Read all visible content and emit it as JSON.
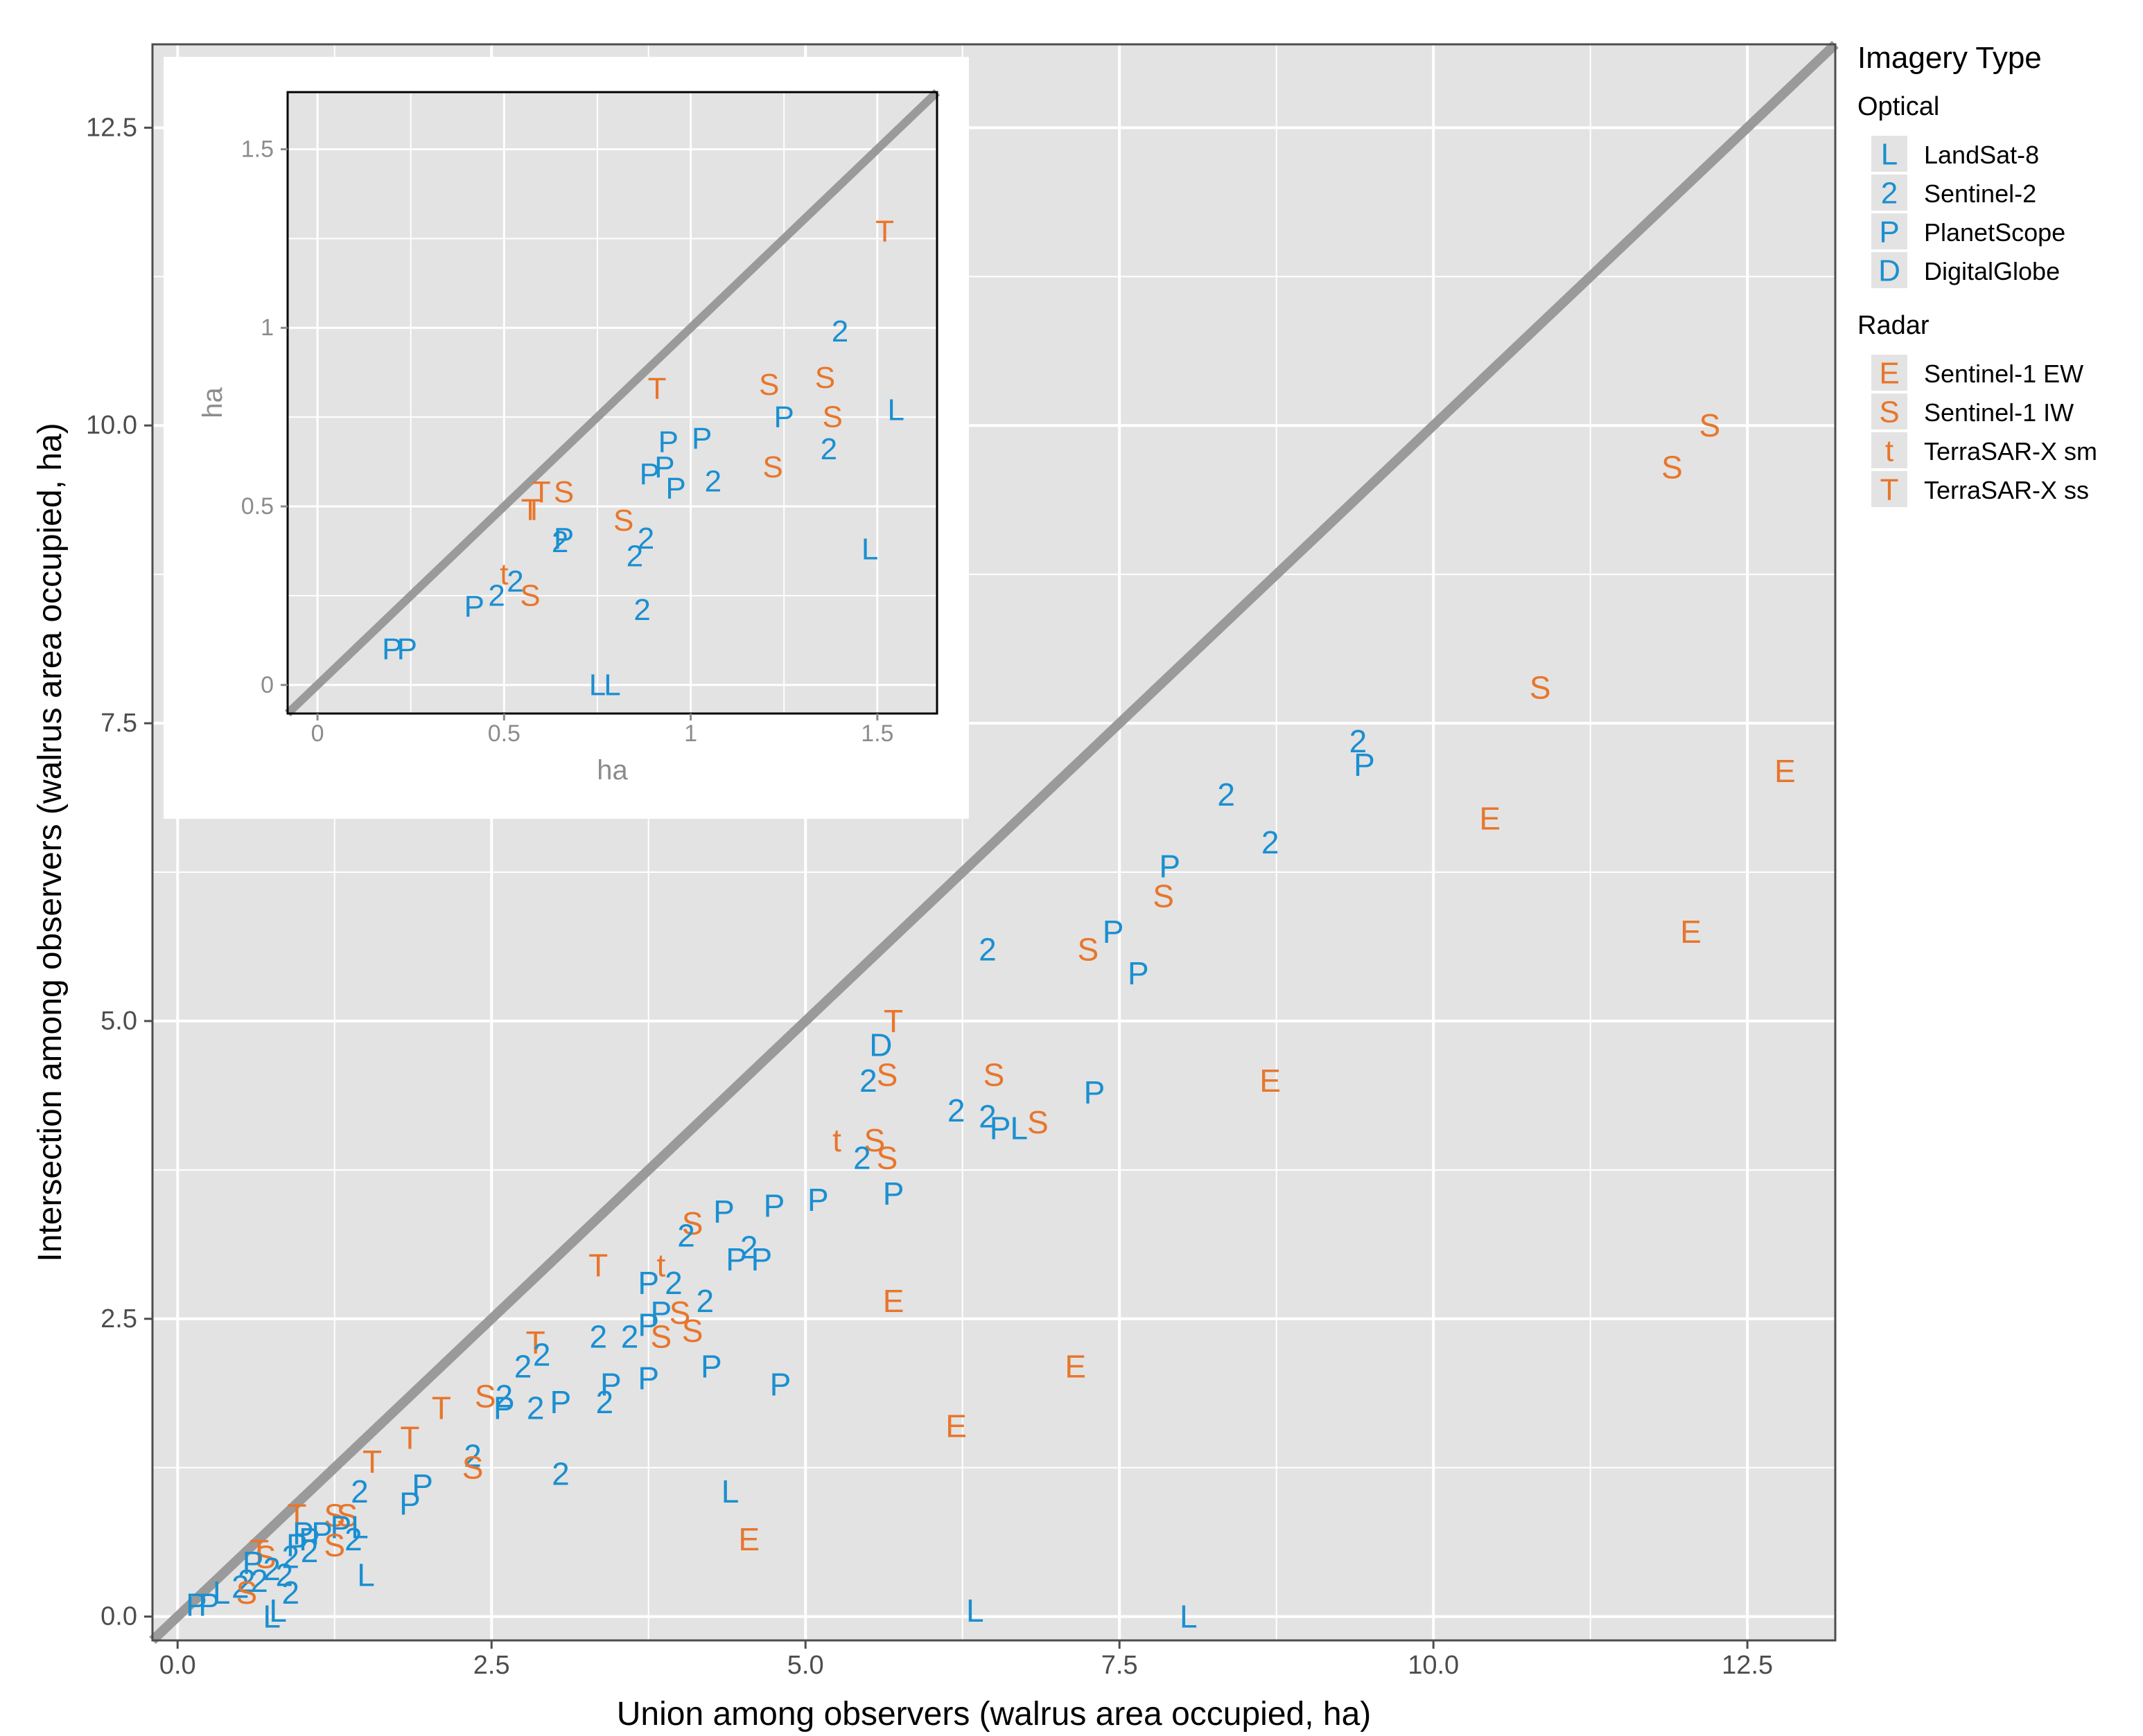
{
  "chart_data": [
    {
      "type": "scatter",
      "name": "main",
      "xlabel": "Union among observers (walrus area occupied, ha)",
      "ylabel": "Intersection among observers (walrus area occupied, ha)",
      "xlim": [
        -0.2,
        13.2
      ],
      "ylim": [
        -0.2,
        13.2
      ],
      "xticks": [
        0.0,
        2.5,
        5.0,
        7.5,
        10.0,
        12.5
      ],
      "yticks": [
        0.0,
        2.5,
        5.0,
        7.5,
        10.0,
        12.5
      ],
      "xtick_labels": [
        "0.0",
        "2.5",
        "5.0",
        "7.5",
        "10.0",
        "12.5"
      ],
      "ytick_labels": [
        "0.0",
        "2.5",
        "5.0",
        "7.5",
        "10.0",
        "12.5"
      ],
      "identity_line": true,
      "points": [
        {
          "x": 12.2,
          "y": 10.0,
          "label": "S"
        },
        {
          "x": 11.9,
          "y": 9.65,
          "label": "S"
        },
        {
          "x": 10.85,
          "y": 7.8,
          "label": "S"
        },
        {
          "x": 12.8,
          "y": 7.1,
          "label": "E"
        },
        {
          "x": 10.45,
          "y": 6.7,
          "label": "E"
        },
        {
          "x": 12.05,
          "y": 5.75,
          "label": "E"
        },
        {
          "x": 9.4,
          "y": 7.35,
          "label": "2"
        },
        {
          "x": 9.45,
          "y": 7.15,
          "label": "P"
        },
        {
          "x": 8.35,
          "y": 6.9,
          "label": "2"
        },
        {
          "x": 8.7,
          "y": 6.5,
          "label": "2"
        },
        {
          "x": 7.9,
          "y": 6.3,
          "label": "P"
        },
        {
          "x": 7.85,
          "y": 6.05,
          "label": "S"
        },
        {
          "x": 7.45,
          "y": 5.75,
          "label": "P"
        },
        {
          "x": 7.25,
          "y": 5.6,
          "label": "S"
        },
        {
          "x": 7.65,
          "y": 5.4,
          "label": "P"
        },
        {
          "x": 6.45,
          "y": 5.6,
          "label": "2"
        },
        {
          "x": 5.7,
          "y": 5.0,
          "label": "T"
        },
        {
          "x": 5.6,
          "y": 4.8,
          "label": "D"
        },
        {
          "x": 5.65,
          "y": 4.55,
          "label": "S"
        },
        {
          "x": 5.5,
          "y": 4.5,
          "label": "2"
        },
        {
          "x": 6.5,
          "y": 4.55,
          "label": "S"
        },
        {
          "x": 8.7,
          "y": 4.5,
          "label": "E"
        },
        {
          "x": 7.3,
          "y": 4.4,
          "label": "P"
        },
        {
          "x": 6.2,
          "y": 4.25,
          "label": "2"
        },
        {
          "x": 6.45,
          "y": 4.2,
          "label": "2"
        },
        {
          "x": 6.55,
          "y": 4.1,
          "label": "P"
        },
        {
          "x": 6.7,
          "y": 4.1,
          "label": "L"
        },
        {
          "x": 6.85,
          "y": 4.15,
          "label": "S"
        },
        {
          "x": 5.25,
          "y": 4.0,
          "label": "t"
        },
        {
          "x": 5.55,
          "y": 4.0,
          "label": "S"
        },
        {
          "x": 5.45,
          "y": 3.85,
          "label": "2"
        },
        {
          "x": 5.65,
          "y": 3.85,
          "label": "S"
        },
        {
          "x": 5.7,
          "y": 3.55,
          "label": "P"
        },
        {
          "x": 5.1,
          "y": 3.5,
          "label": "P"
        },
        {
          "x": 4.75,
          "y": 3.45,
          "label": "P"
        },
        {
          "x": 4.35,
          "y": 3.4,
          "label": "P"
        },
        {
          "x": 4.1,
          "y": 3.3,
          "label": "S"
        },
        {
          "x": 4.05,
          "y": 3.2,
          "label": "2"
        },
        {
          "x": 4.55,
          "y": 3.1,
          "label": "2"
        },
        {
          "x": 4.45,
          "y": 3.0,
          "label": "P"
        },
        {
          "x": 4.65,
          "y": 3.0,
          "label": "P"
        },
        {
          "x": 3.35,
          "y": 2.95,
          "label": "T"
        },
        {
          "x": 3.85,
          "y": 2.95,
          "label": "t"
        },
        {
          "x": 3.75,
          "y": 2.8,
          "label": "P"
        },
        {
          "x": 3.95,
          "y": 2.8,
          "label": "2"
        },
        {
          "x": 5.7,
          "y": 2.65,
          "label": "E"
        },
        {
          "x": 4.2,
          "y": 2.65,
          "label": "2"
        },
        {
          "x": 3.85,
          "y": 2.55,
          "label": "P"
        },
        {
          "x": 4.0,
          "y": 2.55,
          "label": "S"
        },
        {
          "x": 4.1,
          "y": 2.4,
          "label": "S"
        },
        {
          "x": 3.35,
          "y": 2.35,
          "label": "2"
        },
        {
          "x": 3.6,
          "y": 2.35,
          "label": "2"
        },
        {
          "x": 3.75,
          "y": 2.45,
          "label": "P"
        },
        {
          "x": 3.85,
          "y": 2.35,
          "label": "S"
        },
        {
          "x": 2.85,
          "y": 2.3,
          "label": "T"
        },
        {
          "x": 2.9,
          "y": 2.2,
          "label": "2"
        },
        {
          "x": 2.75,
          "y": 2.1,
          "label": "2"
        },
        {
          "x": 7.15,
          "y": 2.1,
          "label": "E"
        },
        {
          "x": 4.25,
          "y": 2.1,
          "label": "P"
        },
        {
          "x": 4.8,
          "y": 1.95,
          "label": "P"
        },
        {
          "x": 3.45,
          "y": 1.95,
          "label": "P"
        },
        {
          "x": 3.75,
          "y": 2.0,
          "label": "P"
        },
        {
          "x": 2.45,
          "y": 1.85,
          "label": "S"
        },
        {
          "x": 2.6,
          "y": 1.85,
          "label": "2"
        },
        {
          "x": 2.6,
          "y": 1.75,
          "label": "P"
        },
        {
          "x": 2.85,
          "y": 1.75,
          "label": "2"
        },
        {
          "x": 3.05,
          "y": 1.8,
          "label": "P"
        },
        {
          "x": 3.4,
          "y": 1.8,
          "label": "2"
        },
        {
          "x": 2.1,
          "y": 1.75,
          "label": "T"
        },
        {
          "x": 6.2,
          "y": 1.6,
          "label": "E"
        },
        {
          "x": 1.85,
          "y": 1.5,
          "label": "T"
        },
        {
          "x": 2.35,
          "y": 1.35,
          "label": "2"
        },
        {
          "x": 2.35,
          "y": 1.25,
          "label": "S"
        },
        {
          "x": 1.55,
          "y": 1.3,
          "label": "T"
        },
        {
          "x": 3.05,
          "y": 1.2,
          "label": "2"
        },
        {
          "x": 1.95,
          "y": 1.1,
          "label": "P"
        },
        {
          "x": 4.4,
          "y": 1.05,
          "label": "L"
        },
        {
          "x": 1.45,
          "y": 1.05,
          "label": "2"
        },
        {
          "x": 1.85,
          "y": 0.95,
          "label": "P"
        },
        {
          "x": 0.95,
          "y": 0.85,
          "label": "T"
        },
        {
          "x": 1.25,
          "y": 0.85,
          "label": "S"
        },
        {
          "x": 1.35,
          "y": 0.85,
          "label": "S"
        },
        {
          "x": 1.45,
          "y": 0.75,
          "label": "L"
        },
        {
          "x": 1.3,
          "y": 0.75,
          "label": "P"
        },
        {
          "x": 1.15,
          "y": 0.7,
          "label": "P"
        },
        {
          "x": 1.0,
          "y": 0.7,
          "label": "P"
        },
        {
          "x": 1.05,
          "y": 0.65,
          "label": "P"
        },
        {
          "x": 1.4,
          "y": 0.65,
          "label": "2"
        },
        {
          "x": 1.25,
          "y": 0.6,
          "label": "S"
        },
        {
          "x": 4.55,
          "y": 0.65,
          "label": "E"
        },
        {
          "x": 0.95,
          "y": 0.6,
          "label": "P"
        },
        {
          "x": 1.05,
          "y": 0.55,
          "label": "2"
        },
        {
          "x": 0.65,
          "y": 0.55,
          "label": "T"
        },
        {
          "x": 0.7,
          "y": 0.5,
          "label": "S"
        },
        {
          "x": 0.9,
          "y": 0.5,
          "label": "2"
        },
        {
          "x": 0.6,
          "y": 0.45,
          "label": "P"
        },
        {
          "x": 0.75,
          "y": 0.4,
          "label": "2"
        },
        {
          "x": 0.85,
          "y": 0.35,
          "label": "2"
        },
        {
          "x": 1.5,
          "y": 0.35,
          "label": "L"
        },
        {
          "x": 0.55,
          "y": 0.3,
          "label": "2"
        },
        {
          "x": 0.65,
          "y": 0.3,
          "label": "2"
        },
        {
          "x": 0.5,
          "y": 0.25,
          "label": "2"
        },
        {
          "x": 0.55,
          "y": 0.2,
          "label": "S"
        },
        {
          "x": 0.35,
          "y": 0.2,
          "label": "L"
        },
        {
          "x": 0.9,
          "y": 0.2,
          "label": "2"
        },
        {
          "x": 0.15,
          "y": 0.1,
          "label": "P"
        },
        {
          "x": 0.25,
          "y": 0.1,
          "label": "P"
        },
        {
          "x": 0.8,
          "y": 0.05,
          "label": "L"
        },
        {
          "x": 0.75,
          "y": 0.0,
          "label": "L"
        },
        {
          "x": 6.35,
          "y": 0.05,
          "label": "L"
        },
        {
          "x": 8.05,
          "y": 0.0,
          "label": "L"
        }
      ]
    },
    {
      "type": "scatter",
      "name": "inset",
      "xlabel": "ha",
      "ylabel": "ha",
      "xlim": [
        -0.08,
        1.66
      ],
      "ylim": [
        -0.08,
        1.66
      ],
      "xticks": [
        0,
        0.5,
        1,
        1.5
      ],
      "yticks": [
        0,
        0.5,
        1,
        1.5
      ],
      "xtick_labels": [
        "0",
        "0.5",
        "1",
        "1.5"
      ],
      "ytick_labels": [
        "0",
        "0.5",
        "1",
        "1.5"
      ],
      "identity_line": true,
      "points": [
        {
          "x": 1.52,
          "y": 1.27,
          "label": "T"
        },
        {
          "x": 1.4,
          "y": 0.99,
          "label": "2"
        },
        {
          "x": 0.91,
          "y": 0.83,
          "label": "T"
        },
        {
          "x": 1.21,
          "y": 0.84,
          "label": "S"
        },
        {
          "x": 1.36,
          "y": 0.86,
          "label": "S"
        },
        {
          "x": 1.55,
          "y": 0.77,
          "label": "L"
        },
        {
          "x": 1.25,
          "y": 0.75,
          "label": "P"
        },
        {
          "x": 1.38,
          "y": 0.75,
          "label": "S"
        },
        {
          "x": 0.94,
          "y": 0.68,
          "label": "P"
        },
        {
          "x": 1.03,
          "y": 0.69,
          "label": "P"
        },
        {
          "x": 1.37,
          "y": 0.66,
          "label": "2"
        },
        {
          "x": 1.22,
          "y": 0.61,
          "label": "S"
        },
        {
          "x": 0.93,
          "y": 0.61,
          "label": "P"
        },
        {
          "x": 0.89,
          "y": 0.59,
          "label": "P"
        },
        {
          "x": 1.06,
          "y": 0.57,
          "label": "2"
        },
        {
          "x": 0.96,
          "y": 0.55,
          "label": "P"
        },
        {
          "x": 0.6,
          "y": 0.54,
          "label": "T"
        },
        {
          "x": 0.66,
          "y": 0.54,
          "label": "S"
        },
        {
          "x": 0.57,
          "y": 0.49,
          "label": "T"
        },
        {
          "x": 0.58,
          "y": 0.49,
          "label": "T"
        },
        {
          "x": 0.82,
          "y": 0.46,
          "label": "S"
        },
        {
          "x": 0.66,
          "y": 0.41,
          "label": "P"
        },
        {
          "x": 0.65,
          "y": 0.4,
          "label": "2"
        },
        {
          "x": 0.88,
          "y": 0.41,
          "label": "2"
        },
        {
          "x": 0.85,
          "y": 0.36,
          "label": "2"
        },
        {
          "x": 1.48,
          "y": 0.38,
          "label": "L"
        },
        {
          "x": 0.5,
          "y": 0.31,
          "label": "t"
        },
        {
          "x": 0.53,
          "y": 0.29,
          "label": "2"
        },
        {
          "x": 0.48,
          "y": 0.25,
          "label": "2"
        },
        {
          "x": 0.57,
          "y": 0.25,
          "label": "S"
        },
        {
          "x": 0.42,
          "y": 0.22,
          "label": "P"
        },
        {
          "x": 0.87,
          "y": 0.21,
          "label": "2"
        },
        {
          "x": 0.2,
          "y": 0.1,
          "label": "P"
        },
        {
          "x": 0.24,
          "y": 0.1,
          "label": "P"
        },
        {
          "x": 0.75,
          "y": 0.0,
          "label": "L"
        },
        {
          "x": 0.79,
          "y": 0.0,
          "label": "L"
        }
      ]
    }
  ],
  "legend": {
    "title": "Imagery Type",
    "groups": [
      {
        "name": "Optical",
        "color": "#1a8fd1",
        "items": [
          {
            "symbol": "L",
            "label": "LandSat-8"
          },
          {
            "symbol": "2",
            "label": "Sentinel-2"
          },
          {
            "symbol": "P",
            "label": "PlanetScope"
          },
          {
            "symbol": "D",
            "label": "DigitalGlobe"
          }
        ]
      },
      {
        "name": "Radar",
        "color": "#e8762c",
        "items": [
          {
            "symbol": "E",
            "label": "Sentinel-1 EW"
          },
          {
            "symbol": "S",
            "label": "Sentinel-1 IW"
          },
          {
            "symbol": "t",
            "label": "TerraSAR-X sm"
          },
          {
            "symbol": "T",
            "label": "TerraSAR-X ss"
          }
        ]
      }
    ]
  },
  "colors": {
    "optical": "#1a8fd1",
    "radar": "#e8762c",
    "panel_bg": "#e3e3e3",
    "grid": "#ffffff",
    "identity_line": "#9a9a9a"
  }
}
